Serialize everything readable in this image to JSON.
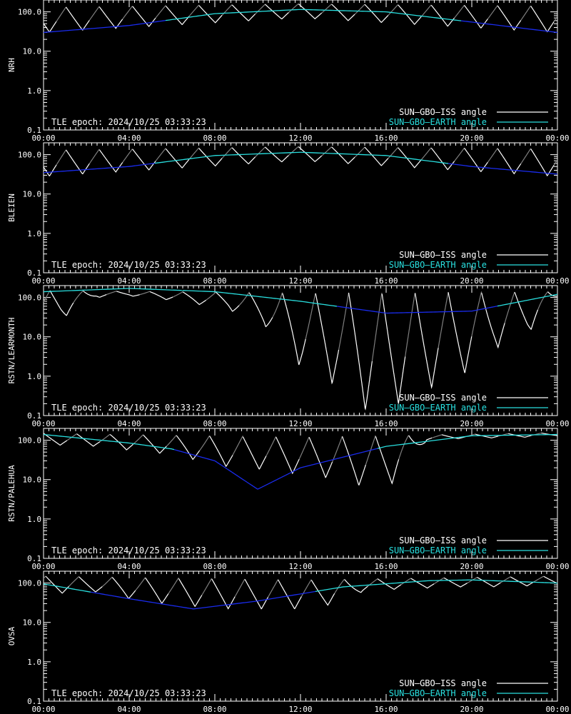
{
  "figure": {
    "colors": {
      "background": "#000000",
      "axes": "#ffffff",
      "iss_day": "#ffffff",
      "iss_shade": "#7f7f7f",
      "earth_day": "#29e0e0",
      "earth_shade": "#1a2cf0"
    }
  },
  "chart_data": [
    {
      "type": "line",
      "ylabel": "NRH",
      "xlim": [
        "00:00",
        "24:00"
      ],
      "ylim": [
        0.1,
        200
      ],
      "yscale": "log",
      "x_ticks": [
        "00:00",
        "04:00",
        "08:00",
        "12:00",
        "16:00",
        "20:00",
        "00:00"
      ],
      "y_ticks": [
        "0.1",
        "1.0",
        "10.0",
        "100.0"
      ],
      "annotation": "TLE epoch: 2024/10/25 03:33:23",
      "legend": {
        "position": "bottom-right",
        "entries": [
          "SUN—GBO—ISS angle",
          "SUN—GBO—EARTH angle"
        ]
      },
      "series": [
        {
          "name": "SUN—GBO—ISS angle",
          "orbit_hours": 1.548,
          "peak_hours": [
            1.05,
            2.6,
            4.15,
            5.7,
            7.25,
            8.8,
            10.35,
            11.9,
            13.45,
            15.0,
            16.55,
            18.1,
            19.65,
            21.2,
            22.75
          ],
          "minima": [
            [
              0,
              30
            ],
            [
              12,
              70
            ],
            [
              24,
              30
            ]
          ],
          "peaks": [
            [
              0,
              130
            ],
            [
              12,
              160
            ],
            [
              24,
              140
            ]
          ]
        },
        {
          "name": "SUN—GBO—EARTH angle",
          "x": [
            "00:00",
            "04:00",
            "08:00",
            "12:00",
            "16:00",
            "20:00",
            "24:00"
          ],
          "values": [
            30,
            45,
            90,
            115,
            100,
            55,
            30
          ]
        }
      ]
    },
    {
      "type": "line",
      "ylabel": "BLEIEN",
      "xlim": [
        "00:00",
        "24:00"
      ],
      "ylim": [
        0.1,
        200
      ],
      "yscale": "log",
      "x_ticks": [
        "00:00",
        "04:00",
        "08:00",
        "12:00",
        "16:00",
        "20:00",
        "00:00"
      ],
      "y_ticks": [
        "0.1",
        "1.0",
        "10.0",
        "100.0"
      ],
      "annotation": "TLE epoch: 2024/10/25 03:33:23",
      "legend": {
        "position": "bottom-right",
        "entries": [
          "SUN—GBO—ISS angle",
          "SUN—GBO—EARTH angle"
        ]
      },
      "series": [
        {
          "name": "SUN—GBO—ISS angle",
          "orbit_hours": 1.548,
          "peak_hours": [
            1.05,
            2.6,
            4.15,
            5.7,
            7.25,
            8.8,
            10.35,
            11.9,
            13.45,
            15.0,
            16.55,
            18.1,
            19.65,
            21.2,
            22.75
          ],
          "minima": [
            [
              0,
              28
            ],
            [
              12,
              70
            ],
            [
              24,
              28
            ]
          ],
          "peaks": [
            [
              0,
              130
            ],
            [
              12,
              160
            ],
            [
              24,
              140
            ]
          ]
        },
        {
          "name": "SUN—GBO—EARTH angle",
          "x": [
            "00:00",
            "04:00",
            "08:00",
            "12:00",
            "16:00",
            "20:00",
            "24:00"
          ],
          "values": [
            35,
            50,
            95,
            115,
            95,
            50,
            32
          ]
        }
      ]
    },
    {
      "type": "line",
      "ylabel": "RSTN/LEARMONTH",
      "xlim": [
        "00:00",
        "24:00"
      ],
      "ylim": [
        0.1,
        200
      ],
      "yscale": "log",
      "x_ticks": [
        "00:00",
        "04:00",
        "08:00",
        "12:00",
        "16:00",
        "20:00",
        "00:00"
      ],
      "y_ticks": [
        "0.1",
        "1.0",
        "10.0",
        "100.0"
      ],
      "annotation": "TLE epoch: 2024/10/25 03:33:23",
      "legend": {
        "position": "bottom-right",
        "entries": [
          "SUN—GBO—ISS angle",
          "SUN—GBO—EARTH angle"
        ]
      },
      "series": [
        {
          "name": "SUN—GBO—ISS angle",
          "orbit_hours": 1.548,
          "peak_hours": [
            0.3,
            1.85,
            3.4,
            4.95,
            6.5,
            8.05,
            9.6,
            11.15,
            12.7,
            14.25,
            15.8,
            17.35,
            18.9,
            20.45,
            22.0,
            23.55
          ],
          "minima": [
            [
              0.8,
              28
            ],
            [
              2.45,
              100
            ],
            [
              4.0,
              110
            ],
            [
              5.6,
              90
            ],
            [
              7.0,
              70
            ],
            [
              8.6,
              50
            ],
            [
              10.3,
              20
            ],
            [
              12.1,
              1.5
            ],
            [
              13.6,
              0.6
            ],
            [
              15.1,
              0.13
            ],
            [
              16.6,
              0.2
            ],
            [
              18.1,
              0.5
            ],
            [
              19.6,
              1.1
            ],
            [
              21.1,
              5.0
            ],
            [
              22.6,
              12.0
            ],
            [
              24,
              90
            ]
          ],
          "peaks": [
            [
              0,
              150
            ],
            [
              12,
              130
            ],
            [
              24,
              140
            ]
          ]
        },
        {
          "name": "SUN—GBO—EARTH angle",
          "x": [
            "00:00",
            "04:00",
            "08:00",
            "12:00",
            "16:00",
            "20:00",
            "24:00"
          ],
          "values": [
            140,
            170,
            140,
            80,
            40,
            45,
            120
          ]
        }
      ]
    },
    {
      "type": "line",
      "ylabel": "RSTN/PALEHUA",
      "xlim": [
        "00:00",
        "24:00"
      ],
      "ylim": [
        0.1,
        200
      ],
      "yscale": "log",
      "x_ticks": [
        "00:00",
        "04:00",
        "08:00",
        "12:00",
        "16:00",
        "20:00",
        "00:00"
      ],
      "y_ticks": [
        "0.1",
        "1.0",
        "10.0",
        "100.0"
      ],
      "annotation": "TLE epoch: 2024/10/25 03:33:23",
      "legend": {
        "position": "bottom-right",
        "entries": [
          "SUN—GBO—ISS angle",
          "SUN—GBO—EARTH angle"
        ]
      },
      "series": [
        {
          "name": "SUN—GBO—ISS angle",
          "orbit_hours": 1.548,
          "peak_hours": [
            0.0,
            1.55,
            3.1,
            4.65,
            6.2,
            7.75,
            9.3,
            10.85,
            12.4,
            13.95,
            15.5,
            17.05,
            18.6,
            20.15,
            21.7,
            23.25
          ],
          "minima": [
            [
              0.9,
              75
            ],
            [
              2.5,
              70
            ],
            [
              4.1,
              55
            ],
            [
              5.7,
              45
            ],
            [
              7.3,
              30
            ],
            [
              8.8,
              20
            ],
            [
              10.3,
              18
            ],
            [
              11.8,
              14
            ],
            [
              13.3,
              11
            ],
            [
              14.8,
              7
            ],
            [
              16.3,
              8
            ],
            [
              17.9,
              100
            ],
            [
              19.4,
              110
            ],
            [
              21.0,
              115
            ],
            [
              22.6,
              120
            ],
            [
              24,
              130
            ]
          ],
          "peaks": [
            [
              0,
              150
            ],
            [
              12,
              120
            ],
            [
              24,
              155
            ]
          ]
        },
        {
          "name": "SUN—GBO—EARTH angle",
          "x": [
            "00:00",
            "04:00",
            "06:00",
            "08:00",
            "10:00",
            "12:00",
            "16:00",
            "20:00",
            "24:00"
          ],
          "values": [
            140,
            85,
            60,
            30,
            5.7,
            20,
            70,
            130,
            140
          ]
        }
      ]
    },
    {
      "type": "line",
      "ylabel": "OVSA",
      "xlim": [
        "00:00",
        "24:00"
      ],
      "ylim": [
        0.1,
        200
      ],
      "yscale": "log",
      "x_ticks": [
        "00:00",
        "04:00",
        "08:00",
        "12:00",
        "16:00",
        "20:00",
        "00:00"
      ],
      "y_ticks": [
        "0.1",
        "1.0",
        "10.0",
        "100.0"
      ],
      "annotation": "TLE epoch: 2024/10/25 03:33:23",
      "legend": {
        "position": "bottom-right",
        "entries": [
          "SUN—GBO—ISS angle",
          "SUN—GBO—EARTH angle"
        ]
      },
      "series": [
        {
          "name": "SUN—GBO—ISS angle",
          "orbit_hours": 1.548,
          "peak_hours": [
            0.1,
            1.65,
            3.2,
            4.75,
            6.3,
            7.85,
            9.4,
            10.95,
            12.5,
            14.05,
            15.6,
            17.15,
            18.7,
            20.25,
            21.8,
            23.35
          ],
          "minima": [
            [
              0.8,
              55
            ],
            [
              2.4,
              60
            ],
            [
              4.0,
              40
            ],
            [
              5.6,
              30
            ],
            [
              7.2,
              25
            ],
            [
              8.8,
              22
            ],
            [
              10.3,
              22
            ],
            [
              11.8,
              22
            ],
            [
              13.4,
              28
            ],
            [
              14.9,
              60
            ],
            [
              16.5,
              70
            ],
            [
              18.0,
              75
            ],
            [
              19.6,
              80
            ],
            [
              21.1,
              80
            ],
            [
              22.7,
              85
            ],
            [
              24,
              90
            ]
          ],
          "peaks": [
            [
              0,
              150
            ],
            [
              12,
              120
            ],
            [
              24,
              150
            ]
          ]
        },
        {
          "name": "SUN—GBO—EARTH angle",
          "x": [
            "00:00",
            "04:00",
            "07:00",
            "10:00",
            "14:00",
            "18:00",
            "20:00",
            "24:00"
          ],
          "values": [
            95,
            40,
            22,
            35,
            80,
            115,
            120,
            100
          ]
        }
      ]
    }
  ]
}
